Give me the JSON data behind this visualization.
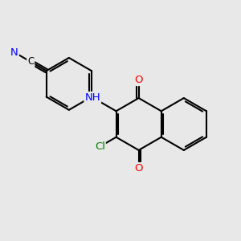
{
  "bg_color": "#e8e8e8",
  "bond_color": "#000000",
  "bond_width": 1.5,
  "atom_colors": {
    "O": "#ff0000",
    "N": "#0000ff",
    "Cl": "#008000"
  },
  "font_size": 9.5
}
